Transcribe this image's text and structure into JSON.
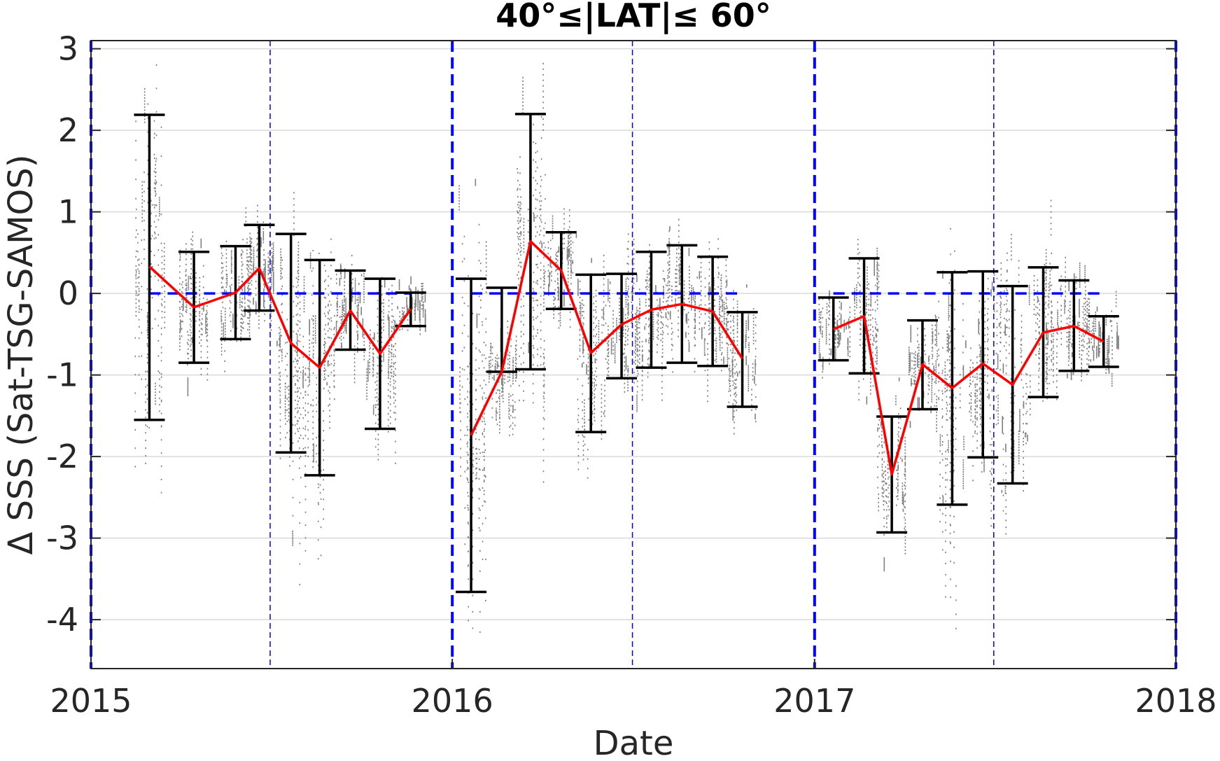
{
  "chart_data": {
    "type": "line",
    "title": "40°≤|LAT|≤ 60°",
    "xlabel": "Date",
    "ylabel": "Δ SSS (Sat-TSG-SAMOS)",
    "xlim": [
      "2015-01-01",
      "2018-01-01"
    ],
    "ylim": [
      -4.6,
      3.1
    ],
    "xticks": [
      "2015",
      "2016",
      "2017",
      "2018"
    ],
    "yticks": [
      3,
      2,
      1,
      0,
      -1,
      -2,
      -3,
      -4
    ],
    "grid": true,
    "reference_line_y": 0,
    "year_boundaries": [
      "2015-01-01",
      "2016-01-01",
      "2017-01-01",
      "2018-01-01"
    ],
    "mid_year_lines": [
      "2015-07-01",
      "2016-07-01",
      "2017-07-01"
    ],
    "series": [
      {
        "segment": "2015",
        "points": [
          {
            "x": "2015-03-01",
            "mean": 0.33,
            "low": -1.55,
            "high": 2.19
          },
          {
            "x": "2015-04-15",
            "mean": -0.17,
            "low": -0.85,
            "high": 0.51
          },
          {
            "x": "2015-05-27",
            "mean": 0.01,
            "low": -0.56,
            "high": 0.58
          },
          {
            "x": "2015-06-20",
            "mean": 0.31,
            "low": -0.21,
            "high": 0.84
          },
          {
            "x": "2015-07-22",
            "mean": -0.61,
            "low": -1.95,
            "high": 0.73
          },
          {
            "x": "2015-08-20",
            "mean": -0.91,
            "low": -2.23,
            "high": 0.41
          },
          {
            "x": "2015-09-20",
            "mean": -0.21,
            "low": -0.69,
            "high": 0.28
          },
          {
            "x": "2015-10-20",
            "mean": -0.74,
            "low": -1.66,
            "high": 0.18
          },
          {
            "x": "2015-11-20",
            "mean": -0.19,
            "low": -0.4,
            "high": 0.01
          }
        ]
      },
      {
        "segment": "2016",
        "points": [
          {
            "x": "2016-01-20",
            "mean": -1.74,
            "low": -3.66,
            "high": 0.18
          },
          {
            "x": "2016-02-20",
            "mean": -0.96,
            "low": -0.96,
            "high": 0.07
          },
          {
            "x": "2016-03-20",
            "mean": 0.64,
            "low": -0.93,
            "high": 2.2
          },
          {
            "x": "2016-04-20",
            "mean": 0.28,
            "low": -0.19,
            "high": 0.75
          },
          {
            "x": "2016-05-20",
            "mean": -0.73,
            "low": -1.7,
            "high": 0.23
          },
          {
            "x": "2016-06-20",
            "mean": -0.38,
            "low": -1.04,
            "high": 0.24
          },
          {
            "x": "2016-07-20",
            "mean": -0.2,
            "low": -0.91,
            "high": 0.51
          },
          {
            "x": "2016-08-20",
            "mean": -0.13,
            "low": -0.85,
            "high": 0.59
          },
          {
            "x": "2016-09-20",
            "mean": -0.22,
            "low": -0.89,
            "high": 0.45
          },
          {
            "x": "2016-10-20",
            "mean": -0.8,
            "low": -1.39,
            "high": -0.23
          }
        ]
      },
      {
        "segment": "2017",
        "points": [
          {
            "x": "2017-01-20",
            "mean": -0.44,
            "low": -0.82,
            "high": -0.05
          },
          {
            "x": "2017-02-20",
            "mean": -0.28,
            "low": -0.98,
            "high": 0.43
          },
          {
            "x": "2017-03-20",
            "mean": -2.22,
            "low": -2.93,
            "high": -1.51
          },
          {
            "x": "2017-04-20",
            "mean": -0.87,
            "low": -1.42,
            "high": -0.33
          },
          {
            "x": "2017-05-20",
            "mean": -1.16,
            "low": -2.59,
            "high": 0.26
          },
          {
            "x": "2017-06-20",
            "mean": -0.86,
            "low": -2.01,
            "high": 0.27
          },
          {
            "x": "2017-07-20",
            "mean": -1.12,
            "low": -2.33,
            "high": 0.09
          },
          {
            "x": "2017-08-20",
            "mean": -0.48,
            "low": -1.27,
            "high": 0.32
          },
          {
            "x": "2017-09-20",
            "mean": -0.4,
            "low": -0.95,
            "high": 0.16
          },
          {
            "x": "2017-10-20",
            "mean": -0.59,
            "low": -0.9,
            "high": -0.28
          }
        ]
      }
    ],
    "scatter_color": "#808080",
    "mean_line_color": "#ff0000",
    "errorbar_color": "#000000",
    "reference_color": "#0000ff"
  }
}
